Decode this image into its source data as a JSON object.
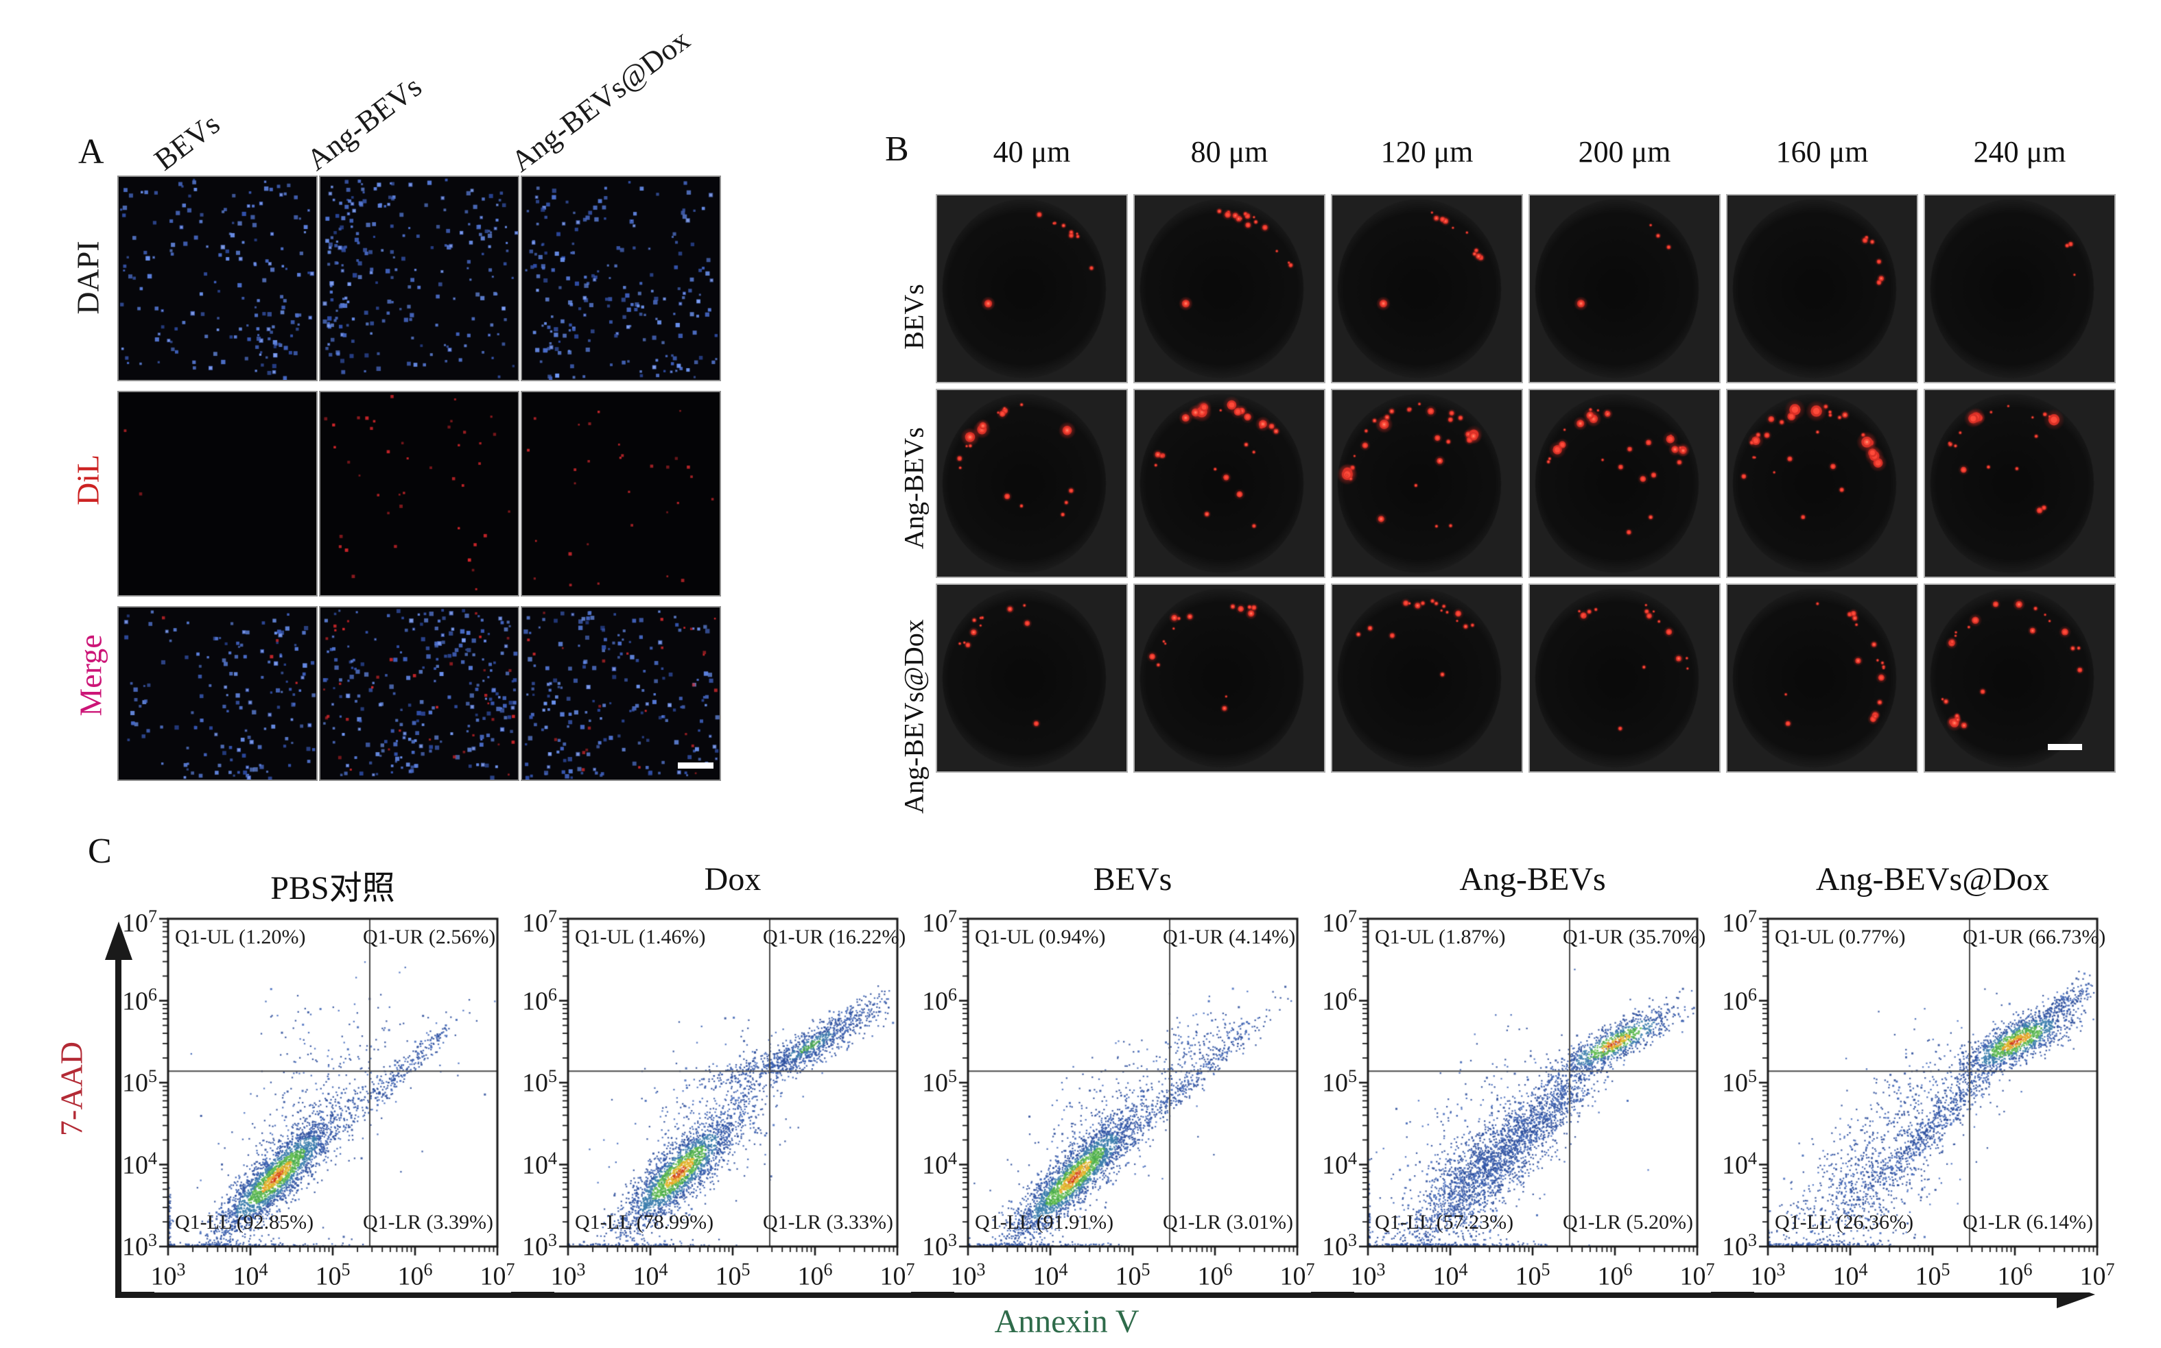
{
  "panel_a": {
    "label": "A",
    "column_labels": [
      "BEVs",
      "Ang-BEVs",
      "Ang-BEVs@Dox"
    ],
    "row_labels": [
      {
        "text": "DAPI",
        "color": "#1c1c1c"
      },
      {
        "text": "DiL",
        "color": "#cc2222"
      },
      {
        "text": "Merge",
        "color": "#cc1577"
      }
    ],
    "cells": [
      [
        {
          "blue": 180,
          "red": 0,
          "shade": 1
        },
        {
          "blue": 265,
          "red": 0,
          "shade": 1
        },
        {
          "blue": 235,
          "red": 0,
          "shade": 1
        }
      ],
      [
        {
          "blue": 0,
          "red": 2,
          "shade": 0.9
        },
        {
          "blue": 0,
          "red": 42,
          "shade": 1
        },
        {
          "blue": 0,
          "red": 30,
          "shade": 0.75
        }
      ],
      [
        {
          "blue": 175,
          "red": 4,
          "shade": 0.9
        },
        {
          "blue": 255,
          "red": 36,
          "shade": 1
        },
        {
          "blue": 225,
          "red": 26,
          "shade": 0.85
        }
      ]
    ],
    "scale_bar": true
  },
  "panel_b": {
    "label": "B",
    "column_labels": [
      "40 μm",
      "80 μm",
      "120 μm",
      "200 μm",
      "160 μm",
      "240 μm"
    ],
    "row_labels": [
      "BEVs",
      "Ang-BEVs",
      "Ang-BEVs@Dox"
    ],
    "cells": [
      [
        {
          "n": 9,
          "s": 5,
          "a0": -80,
          "a1": -15,
          "lb": 1,
          "in": 0
        },
        {
          "n": 16,
          "s": 6,
          "a0": -95,
          "a1": -5,
          "lb": 1,
          "in": 0
        },
        {
          "n": 10,
          "s": 5,
          "a0": -80,
          "a1": -20,
          "lb": 1,
          "in": 0
        },
        {
          "n": 3,
          "s": 4,
          "a0": -70,
          "a1": -30,
          "lb": 1,
          "in": 0
        },
        {
          "n": 7,
          "s": 4,
          "a0": -50,
          "a1": 30,
          "lb": 0,
          "in": 0
        },
        {
          "n": 3,
          "s": 4,
          "a0": -45,
          "a1": 10,
          "lb": 0,
          "in": 0
        }
      ],
      [
        {
          "n": 13,
          "s": 11,
          "a0": -170,
          "a1": -45,
          "lb": 0,
          "in": 5
        },
        {
          "n": 19,
          "s": 12,
          "a0": -175,
          "a1": -30,
          "lb": 0,
          "in": 7
        },
        {
          "n": 23,
          "s": 13,
          "a0": -178,
          "a1": -25,
          "lb": 0,
          "in": 7
        },
        {
          "n": 19,
          "s": 11,
          "a0": -165,
          "a1": -15,
          "lb": 0,
          "in": 8
        },
        {
          "n": 23,
          "s": 13,
          "a0": -182,
          "a1": -15,
          "lb": 0,
          "in": 6
        },
        {
          "n": 15,
          "s": 13,
          "a0": -150,
          "a1": -50,
          "lb": 0,
          "in": 6
        }
      ],
      [
        {
          "n": 10,
          "s": 5,
          "a0": -172,
          "a1": -85,
          "lb": 0,
          "in": 2
        },
        {
          "n": 13,
          "s": 6,
          "a0": -172,
          "a1": -55,
          "lb": 0,
          "in": 2
        },
        {
          "n": 16,
          "s": 7,
          "a0": -165,
          "a1": -35,
          "lb": 0,
          "in": 2
        },
        {
          "n": 14,
          "s": 7,
          "a0": -125,
          "a1": -5,
          "lb": 0,
          "in": 2
        },
        {
          "n": 16,
          "s": 7,
          "a0": -95,
          "a1": 45,
          "lb": 0,
          "in": 3
        },
        {
          "n": 15,
          "s": 8,
          "a0": -170,
          "a1": -5,
          "lb": 0,
          "in": 2,
          "bn": 8,
          "b0": 125,
          "b1": 175,
          "s2": 10
        }
      ]
    ],
    "scale_bar": true
  },
  "panel_c": {
    "label": "C"
  },
  "chart_data": {
    "type": "scatter",
    "subtype": "flow-cytometry-density",
    "xlabel": {
      "text": "Annexin V",
      "color": "#2e6b4a"
    },
    "ylabel": {
      "text": "7-AAD",
      "color": "#b32a35"
    },
    "x_range_log10": [
      3,
      7
    ],
    "y_range_log10": [
      3,
      7
    ],
    "x_ticks": [
      "10^3",
      "10^4",
      "10^5",
      "10^6",
      "10^7"
    ],
    "y_ticks": [
      "10^7",
      "10^6",
      "10^5",
      "10^4",
      "10^3"
    ],
    "gate_x_log10": 5.45,
    "gate_y_log10": 5.14,
    "grid": false,
    "plots": [
      {
        "title": "PBS对照",
        "quadrants": {
          "ul": "Q1-UL (1.20%)",
          "ur": "Q1-UR (2.56%)",
          "ll": "Q1-LL (92.85%)",
          "lr": "Q1-LR (3.39%)"
        },
        "quadrant_values": {
          "ul": 1.2,
          "ur": 2.56,
          "ll": 92.85,
          "lr": 3.39
        },
        "clusters": [
          [
            300,
            4.7,
            4.55,
            45,
            0.65,
            0.35,
            0
          ],
          [
            260,
            5.85,
            5.15,
            43,
            0.5,
            0.07,
            0
          ],
          [
            70,
            5.2,
            5.6,
            0,
            0.8,
            0.35,
            0
          ],
          [
            130,
            3.9,
            2.95,
            0,
            0.5,
            0.1,
            0
          ],
          [
            60,
            2.95,
            3.3,
            90,
            0.25,
            0.05,
            0
          ],
          [
            2400,
            4.32,
            3.85,
            45,
            0.52,
            0.13,
            1
          ]
        ]
      },
      {
        "title": "Dox",
        "quadrants": {
          "ul": "Q1-UL (1.46%)",
          "ur": "Q1-UR (16.22%)",
          "ll": "Q1-LL (78.99%)",
          "lr": "Q1-LR (3.33%)"
        },
        "quadrant_values": {
          "ul": 1.46,
          "ur": 16.22,
          "ll": 78.99,
          "lr": 3.33
        },
        "clusters": [
          [
            380,
            4.8,
            4.6,
            45,
            0.7,
            0.38,
            0
          ],
          [
            220,
            5.35,
            5.2,
            15,
            0.4,
            0.08,
            0
          ],
          [
            150,
            6.4,
            5.75,
            35,
            0.35,
            0.07,
            0
          ],
          [
            90,
            3.8,
            2.95,
            0,
            0.45,
            0.08,
            0
          ],
          [
            650,
            5.95,
            5.45,
            30,
            0.45,
            0.1,
            2
          ],
          [
            2100,
            4.35,
            3.9,
            45,
            0.5,
            0.14,
            1
          ]
        ]
      },
      {
        "title": "BEVs",
        "quadrants": {
          "ul": "Q1-UL (0.94%)",
          "ur": "Q1-UR (4.14%)",
          "ll": "Q1-LL (91.91%)",
          "lr": "Q1-LR (3.01%)"
        },
        "quadrant_values": {
          "ul": 0.94,
          "ur": 4.14,
          "ll": 91.91,
          "lr": 3.01
        },
        "clusters": [
          [
            300,
            4.7,
            4.55,
            45,
            0.65,
            0.33,
            0
          ],
          [
            300,
            5.8,
            5.1,
            43,
            0.55,
            0.07,
            0
          ],
          [
            140,
            5.9,
            5.5,
            30,
            0.4,
            0.18,
            0
          ],
          [
            110,
            3.9,
            2.95,
            0,
            0.5,
            0.09,
            0
          ],
          [
            2400,
            4.3,
            3.85,
            45,
            0.55,
            0.13,
            1
          ]
        ]
      },
      {
        "title": "Ang-BEVs",
        "quadrants": {
          "ul": "Q1-UL (1.87%)",
          "ur": "Q1-UR (35.70%)",
          "ll": "Q1-LL (57.23%)",
          "lr": "Q1-LR (5.20%)"
        },
        "quadrant_values": {
          "ul": 1.87,
          "ur": 35.7,
          "ll": 57.23,
          "lr": 5.2
        },
        "clusters": [
          [
            1900,
            4.45,
            3.95,
            45,
            0.68,
            0.2,
            0
          ],
          [
            500,
            5.3,
            4.75,
            45,
            0.5,
            0.1,
            0
          ],
          [
            350,
            4.4,
            4.3,
            45,
            0.8,
            0.4,
            0
          ],
          [
            160,
            4.0,
            2.95,
            0,
            0.6,
            0.1,
            0
          ],
          [
            40,
            2.95,
            3.4,
            90,
            0.3,
            0.05,
            0
          ],
          [
            850,
            6.0,
            5.48,
            28,
            0.42,
            0.1,
            1
          ]
        ]
      },
      {
        "title": "Ang-BEVs@Dox",
        "quadrants": {
          "ul": "Q1-UL (0.77%)",
          "ur": "Q1-UR (66.73%)",
          "ll": "Q1-LL (26.36%)",
          "lr": "Q1-LR (6.14%)"
        },
        "quadrant_values": {
          "ul": 0.77,
          "ur": 66.73,
          "ll": 26.36,
          "lr": 6.14
        },
        "clusters": [
          [
            800,
            4.15,
            3.75,
            45,
            0.75,
            0.33,
            0
          ],
          [
            520,
            5.05,
            4.5,
            45,
            0.6,
            0.08,
            0
          ],
          [
            180,
            6.55,
            5.95,
            35,
            0.3,
            0.07,
            0
          ],
          [
            200,
            4.9,
            4.8,
            45,
            0.7,
            0.35,
            0
          ],
          [
            100,
            3.7,
            2.95,
            0,
            0.5,
            0.1,
            0
          ],
          [
            1300,
            6.02,
            5.5,
            28,
            0.4,
            0.12,
            1
          ]
        ]
      }
    ]
  }
}
